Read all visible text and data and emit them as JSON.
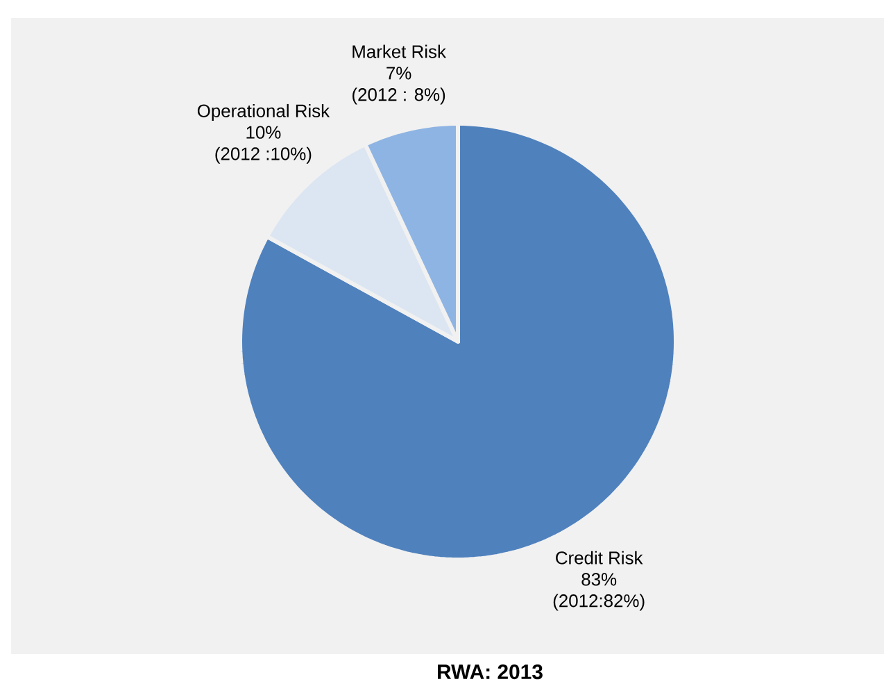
{
  "chart_data": {
    "type": "pie",
    "title": "RWA: 2013",
    "categories": [
      "Credit Risk",
      "Operational Risk",
      "Market Risk"
    ],
    "values": [
      83,
      10,
      7
    ],
    "colors": [
      "#4f81bd",
      "#dce6f2",
      "#8eb4e3"
    ],
    "value_labels": [
      "83%",
      "10%",
      "7%"
    ],
    "annotations": [
      "(2012:82%)",
      "(2012 :10%)",
      "(2012 : 8%)"
    ]
  }
}
